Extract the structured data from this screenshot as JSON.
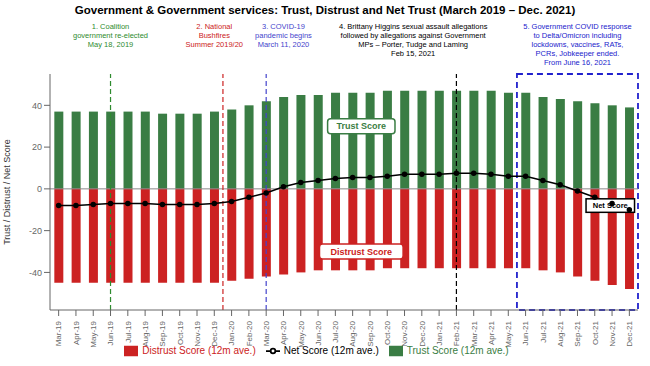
{
  "chart_data": {
    "type": "bar",
    "title": "Government & Government services: Trust, Distrust and Net Trust (March 2019 – Dec. 2021)",
    "y_label": "Trust / Distrust / Net Score",
    "categories": [
      "Mar-19",
      "Apr-19",
      "May-19",
      "Jun-19",
      "Jul-19",
      "Aug-19",
      "Sep-19",
      "Oct-19",
      "Nov-19",
      "Dec-19",
      "Jan-20",
      "Feb-20",
      "Mar-20",
      "Apr-20",
      "May-20",
      "Jun-20",
      "Jul-20",
      "Aug-20",
      "Sep-20",
      "Oct-20",
      "Nov-20",
      "Dec-20",
      "Jan-21",
      "Feb-21",
      "Mar-21",
      "Apr-21",
      "May-21",
      "Jun-21",
      "Jul-21",
      "Aug-21",
      "Sep-21",
      "Oct-21",
      "Nov-21",
      "Dec-21"
    ],
    "series": [
      {
        "name": "Trust Score (12m ave.)",
        "type": "bar",
        "color": "#3a7d44",
        "values": [
          37,
          37,
          37,
          37,
          37,
          37,
          36,
          36,
          36,
          37,
          38,
          40,
          42,
          44,
          45,
          45,
          46,
          46,
          46,
          47,
          47,
          47,
          47,
          47,
          47,
          47,
          46,
          46,
          44,
          43,
          42,
          41,
          40,
          39
        ]
      },
      {
        "name": "Distrust Score (12m ave.)",
        "type": "bar",
        "color": "#cc2222",
        "values": [
          -45,
          -45,
          -45,
          -45,
          -45,
          -45,
          -45,
          -45,
          -45,
          -45,
          -44,
          -43,
          -42,
          -41,
          -40,
          -39,
          -39,
          -39,
          -39,
          -38,
          -38,
          -38,
          -38,
          -38,
          -38,
          -38,
          -38,
          -38,
          -39,
          -40,
          -42,
          -44,
          -46,
          -48
        ]
      },
      {
        "name": "Net Score (12m ave.)",
        "type": "line",
        "color": "#000000",
        "marker": "circle",
        "values": [
          -8,
          -8,
          -7.5,
          -7,
          -7,
          -7,
          -7.5,
          -7.5,
          -7.5,
          -7,
          -6,
          -4,
          -2,
          1,
          3,
          4,
          5,
          5.5,
          5.5,
          6,
          7,
          7,
          7,
          7.5,
          7.5,
          7,
          6,
          6,
          4,
          2,
          -1,
          -4,
          -7,
          -10
        ]
      }
    ],
    "ylim": [
      -58,
      55
    ],
    "yticks": [
      -40,
      -20,
      0,
      20,
      40
    ],
    "grid": false,
    "legend": "bottom",
    "event_lines": [
      {
        "x": 3,
        "color": "#2e8b2e"
      },
      {
        "x": 9.5,
        "color": "#cc2222"
      },
      {
        "x": 12,
        "color": "#4444cc"
      },
      {
        "x": 23,
        "color": "#000000"
      }
    ],
    "highlight": {
      "from": "Jun-21",
      "color": "#2222cc"
    },
    "annotations": [
      {
        "lines": [
          "1. Coalition",
          "government re-elected",
          "May 18, 2019"
        ],
        "color": "#2e8b2e"
      },
      {
        "lines": [
          "2. National",
          "Bushfires",
          "Summer 2019/20"
        ],
        "color": "#cc2222"
      },
      {
        "lines": [
          "3. COVID-19",
          "pandemic begins",
          "March 11, 2020"
        ],
        "color": "#4444cc"
      },
      {
        "lines": [
          "4. Brittany Higgins sexual assault allegations",
          "followed by allegations against Government",
          "MPs – Porter, Tudge and Laming",
          "Feb 15, 2021"
        ],
        "color": "#000000"
      },
      {
        "lines": [
          "5. Government COVID response",
          "to Delta/Omicron including",
          "lockdowns, vaccines, RATs,",
          "PCRs, Jobkeeper ended.",
          "From June 16, 2021"
        ],
        "color": "#2222cc"
      }
    ],
    "plot_labels": [
      {
        "text": "Trust Score",
        "color": "#3a7d44"
      },
      {
        "text": "Distrust Score",
        "color": "#cc2222"
      },
      {
        "text": "Net Score",
        "color": "#000000"
      }
    ]
  }
}
